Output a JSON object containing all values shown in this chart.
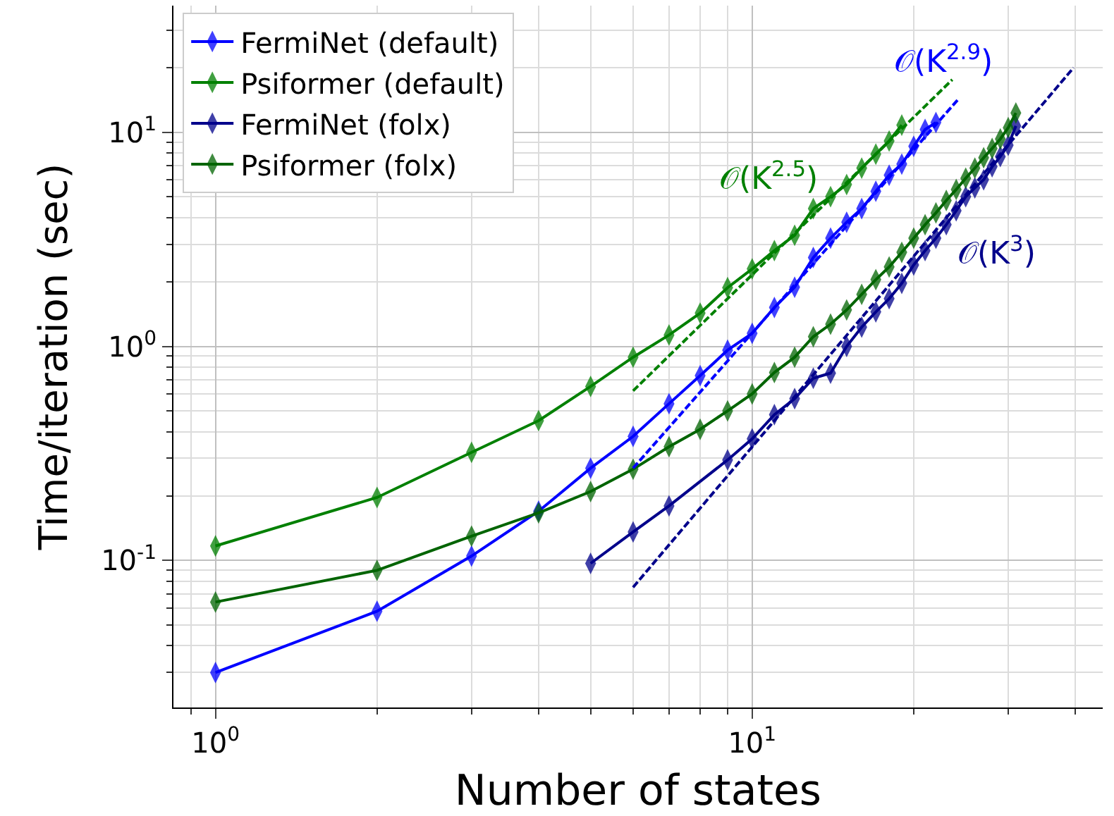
{
  "chart_data": {
    "type": "line",
    "xlabel": "Number of states",
    "ylabel": "Time/iteration (sec)",
    "log": "xy",
    "grid": true,
    "legend": "top left",
    "marker": "diamond",
    "line_style": "solid",
    "xlim": [
      0.835,
      45
    ],
    "ylim": [
      0.0206,
      39
    ],
    "xticks": [
      {
        "value": 1,
        "label": "10$^{0}$"
      },
      {
        "value": 10,
        "label": "10$^{1}$"
      }
    ],
    "yticks": [
      {
        "value": 0.1,
        "label": "10$^{-1}$"
      },
      {
        "value": 1,
        "label": "10$^{0}$"
      },
      {
        "value": 10,
        "label": "10$^{1}$"
      }
    ],
    "series": [
      {
        "name": "FermiNet (default)",
        "color": "#0000ff",
        "x": [
          1,
          2,
          3,
          4,
          5,
          6,
          7,
          8,
          9,
          10,
          11,
          12,
          13,
          14,
          15,
          16,
          17,
          18,
          19,
          20,
          21,
          22
        ],
        "values": [
          0.03,
          0.058,
          0.105,
          0.17,
          0.27,
          0.38,
          0.54,
          0.73,
          0.96,
          1.15,
          1.52,
          1.89,
          2.6,
          3.2,
          3.8,
          4.4,
          5.3,
          6.3,
          7.1,
          8.6,
          10.3,
          11.1
        ]
      },
      {
        "name": "Psiformer (default)",
        "color": "#008000",
        "x": [
          1,
          2,
          3,
          4,
          5,
          6,
          7,
          8,
          9,
          10,
          11,
          12,
          13,
          14,
          15,
          16,
          17,
          18,
          19
        ],
        "values": [
          0.117,
          0.197,
          0.32,
          0.45,
          0.65,
          0.89,
          1.13,
          1.43,
          1.88,
          2.3,
          2.8,
          3.3,
          4.4,
          5.0,
          5.7,
          6.8,
          7.9,
          9.1,
          10.8
        ]
      },
      {
        "name": "FermiNet (folx)",
        "color": "#00008b",
        "x": [
          5,
          6,
          7,
          9,
          10,
          11,
          12,
          13,
          14,
          15,
          16,
          17,
          18,
          19,
          20,
          21,
          22,
          23,
          24,
          25,
          26,
          27,
          28,
          29,
          30,
          31
        ],
        "values": [
          0.097,
          0.136,
          0.18,
          0.295,
          0.37,
          0.48,
          0.57,
          0.71,
          0.75,
          1.0,
          1.23,
          1.45,
          1.67,
          1.97,
          2.4,
          2.8,
          3.2,
          3.7,
          4.3,
          5.0,
          5.5,
          6.0,
          6.9,
          7.7,
          8.7,
          10.7
        ]
      },
      {
        "name": "Psiformer (folx)",
        "color": "#006400",
        "x": [
          1,
          2,
          3,
          4,
          5,
          6,
          7,
          8,
          9,
          10,
          11,
          12,
          13,
          14,
          15,
          16,
          17,
          18,
          19,
          20,
          21,
          22,
          23,
          24,
          25,
          26,
          27,
          28,
          29,
          30,
          31
        ],
        "values": [
          0.064,
          0.09,
          0.13,
          0.167,
          0.21,
          0.267,
          0.34,
          0.41,
          0.5,
          0.6,
          0.755,
          0.89,
          1.11,
          1.27,
          1.48,
          1.75,
          2.05,
          2.35,
          2.75,
          3.2,
          3.7,
          4.2,
          4.8,
          5.4,
          6.1,
          6.8,
          7.6,
          8.4,
          9.3,
          10.5,
          12.3
        ]
      },
      {
        "color": "#008000",
        "x": [
          6,
          23.6
        ],
        "values": [
          0.62,
          17.6
        ],
        "line_style": "dashed",
        "marker": "none"
      },
      {
        "color": "#0000ff",
        "x": [
          6,
          24.3
        ],
        "values": [
          0.27,
          14.4
        ],
        "line_style": "dashed",
        "marker": "none"
      },
      {
        "color": "#00008b",
        "x": [
          6,
          39.7
        ],
        "values": [
          0.075,
          20
        ],
        "line_style": "dashed",
        "marker": "none"
      }
    ],
    "annotations": [
      "𝒪(K$^{2.5}$)",
      "𝒪(K$^{2.9}$)",
      "𝒪(K$^{3}$)"
    ]
  }
}
